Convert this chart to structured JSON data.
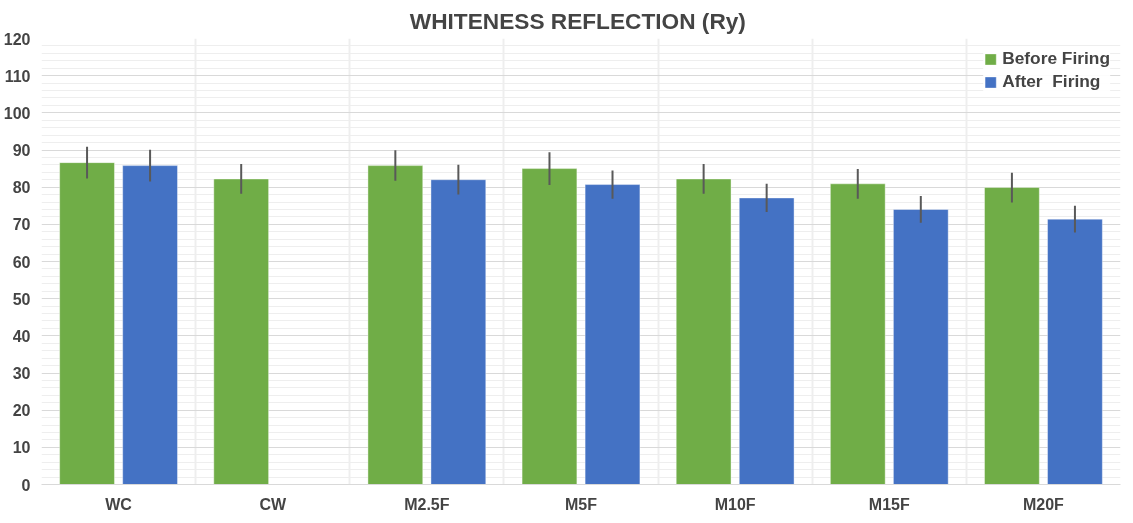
{
  "chart_data": {
    "type": "bar",
    "title": "WHITENESS  REFLECTION (Ry)",
    "categories": [
      "WC",
      "CW",
      "M2.5F",
      "M5F",
      "M10F",
      "M15F",
      "M20F"
    ],
    "series": [
      {
        "name": "Before Firing",
        "color": "#70ad47",
        "values": [
          86.6,
          82.2,
          85.8,
          85.0,
          82.2,
          80.9,
          79.9
        ],
        "errors": [
          4.3,
          4.0,
          4.1,
          4.4,
          4.0,
          4.0,
          4.0
        ]
      },
      {
        "name": "After  Firing",
        "color": "#4472c4",
        "values": [
          85.8,
          null,
          82.0,
          80.7,
          77.1,
          74.0,
          71.4
        ],
        "errors": [
          4.3,
          null,
          4.0,
          3.8,
          3.8,
          3.6,
          3.6
        ]
      }
    ],
    "ylim": [
      0,
      120
    ],
    "yticks": [
      0,
      10,
      20,
      30,
      40,
      50,
      60,
      70,
      80,
      90,
      100,
      110,
      120
    ],
    "grid": true,
    "legend": "top right"
  }
}
